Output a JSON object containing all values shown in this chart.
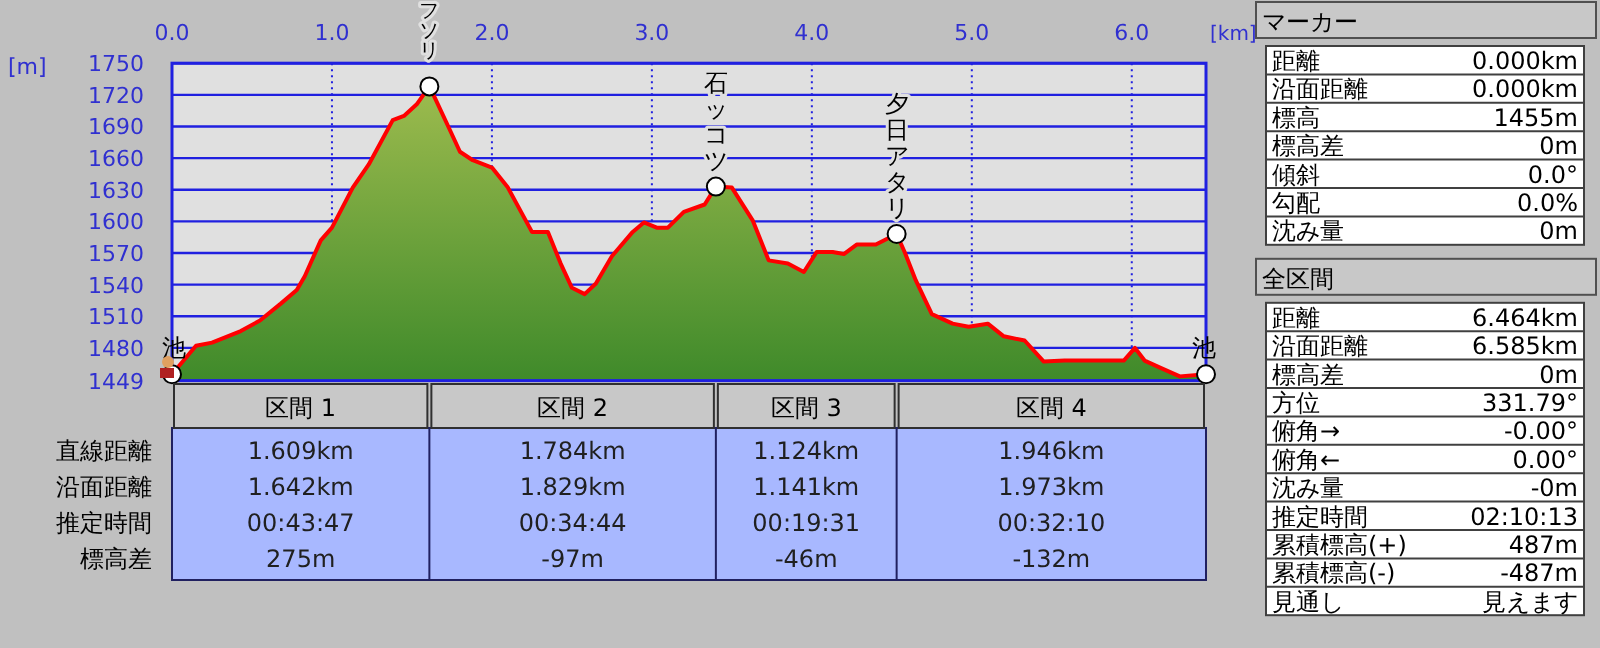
{
  "chart_data": [
    {
      "type": "area",
      "xlabel": "[km]",
      "ylabel": "[m]",
      "xlim": [
        0,
        6.464
      ],
      "ylim": [
        1449,
        1750
      ],
      "xticks": [
        {
          "value": 0,
          "label": "0.0"
        },
        {
          "value": 1,
          "label": "1.0"
        },
        {
          "value": 2,
          "label": "2.0"
        },
        {
          "value": 3,
          "label": "3.0"
        },
        {
          "value": 4,
          "label": "4.0"
        },
        {
          "value": 5,
          "label": "5.0"
        },
        {
          "value": 6,
          "label": "6.0"
        }
      ],
      "yticks": [
        1449,
        1480,
        1510,
        1540,
        1570,
        1600,
        1630,
        1660,
        1690,
        1720,
        1750
      ],
      "grid": true,
      "series": [
        {
          "color": "#ff0000",
          "x": [
            0,
            0.15,
            0.25,
            0.43,
            0.55,
            0.68,
            0.78,
            0.83,
            0.93,
            1.0,
            1.13,
            1.23,
            1.38,
            1.45,
            1.53,
            1.609,
            1.65,
            1.73,
            1.8,
            1.88,
            2.0,
            2.1,
            2.25,
            2.35,
            2.43,
            2.5,
            2.58,
            2.65,
            2.75,
            2.88,
            2.95,
            3.03,
            3.1,
            3.2,
            3.33,
            3.4,
            3.5,
            3.63,
            3.73,
            3.85,
            3.95,
            4.03,
            4.13,
            4.2,
            4.28,
            4.4,
            4.53,
            4.58,
            4.65,
            4.75,
            4.88,
            4.98,
            5.1,
            5.2,
            5.33,
            5.45,
            5.58,
            5.73,
            5.88,
            5.95,
            6.02,
            6.08,
            6.18,
            6.3,
            6.464
          ],
          "values": [
            1455,
            1482,
            1485,
            1496,
            1506,
            1522,
            1535,
            1548,
            1582,
            1594,
            1632,
            1654,
            1696,
            1700,
            1711,
            1728,
            1715,
            1689,
            1666,
            1658,
            1651,
            1632,
            1590,
            1590,
            1560,
            1537,
            1531,
            1541,
            1567,
            1590,
            1599,
            1594,
            1594,
            1609,
            1616,
            1633,
            1632,
            1601,
            1563,
            1560,
            1552,
            1571,
            1571,
            1569,
            1578,
            1578,
            1588,
            1571,
            1544,
            1512,
            1503,
            1500,
            1503,
            1491,
            1487,
            1467,
            1468,
            1468,
            1468,
            1468,
            1480,
            1468,
            1461,
            1453,
            1455
          ]
        }
      ],
      "annotations": [
        {
          "text": "池",
          "x": 0,
          "y": 1455
        },
        {
          "text": "フソリ",
          "x": 1.609,
          "y": 1728
        },
        {
          "text": "石ッコツ",
          "x": 3.4,
          "y": 1633
        },
        {
          "text": "夕日アタリ",
          "x": 4.53,
          "y": 1588
        },
        {
          "text": "池",
          "x": 6.464,
          "y": 1455
        }
      ]
    },
    {
      "type": "other",
      "categories": [
        "区間 1",
        "区間 2",
        "区間 3",
        "区間 4"
      ],
      "y_categories": [
        "直線距離",
        "沿面距離",
        "推定時間",
        "標高差"
      ],
      "cell_labels": [
        [
          "1.609km",
          "1.784km",
          "1.124km",
          "1.946km"
        ],
        [
          "1.642km",
          "1.829km",
          "1.141km",
          "1.973km"
        ],
        [
          "00:43:47",
          "00:34:44",
          "00:19:31",
          "00:32:10"
        ],
        [
          "275m",
          "-97m",
          "-46m",
          "-132m"
        ]
      ]
    },
    {
      "type": "other",
      "title": "マーカー",
      "y_categories": [
        "距離",
        "沿面距離",
        "標高",
        "標高差",
        "傾斜",
        "勾配",
        "沈み量"
      ],
      "cell_labels": [
        [
          "0.000km"
        ],
        [
          "0.000km"
        ],
        [
          "1455m"
        ],
        [
          "0m"
        ],
        [
          "0.0°"
        ],
        [
          "0.0%"
        ],
        [
          "0m"
        ]
      ]
    },
    {
      "type": "other",
      "title": "全区間",
      "y_categories": [
        "距離",
        "沿面距離",
        "標高差",
        "方位",
        "俯角→",
        "俯角←",
        "沈み量",
        "推定時間",
        "累積標高(+)",
        "累積標高(-)",
        "見通し"
      ],
      "cell_labels": [
        [
          "6.464km"
        ],
        [
          "6.585km"
        ],
        [
          "0m"
        ],
        [
          "331.79°"
        ],
        [
          "-0.00°"
        ],
        [
          "0.00°"
        ],
        [
          "-0m"
        ],
        [
          "02:10:13"
        ],
        [
          "487m"
        ],
        [
          "-487m"
        ],
        [
          "見えます"
        ]
      ]
    }
  ]
}
